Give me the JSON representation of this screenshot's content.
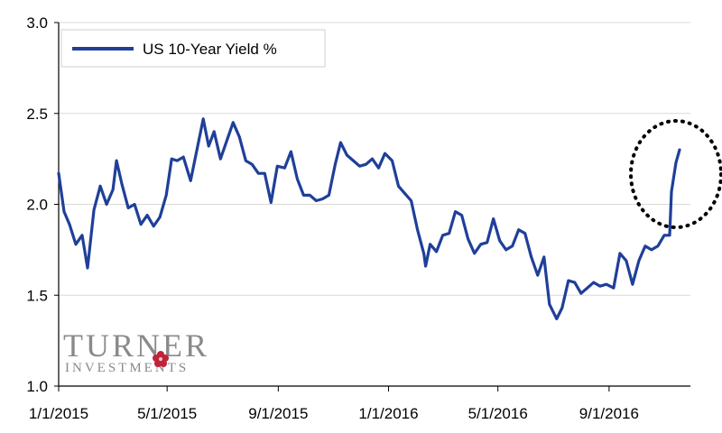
{
  "chart_data": {
    "type": "line",
    "title": "",
    "xlabel": "",
    "ylabel": "",
    "ylim": [
      1.0,
      3.0
    ],
    "yticks": [
      "1.0",
      "1.5",
      "2.0",
      "2.5",
      "3.0"
    ],
    "xlim": [
      "2015-01-01",
      "2016-11-30"
    ],
    "xticks": [
      {
        "date": "2015-01-01",
        "label": "1/1/2015"
      },
      {
        "date": "2015-05-01",
        "label": "5/1/2015"
      },
      {
        "date": "2015-09-01",
        "label": "9/1/2015"
      },
      {
        "date": "2016-01-01",
        "label": "1/1/2016"
      },
      {
        "date": "2016-05-01",
        "label": "5/1/2016"
      },
      {
        "date": "2016-09-01",
        "label": "9/1/2016"
      }
    ],
    "grid": "horizontal",
    "legend": "top-left",
    "line_color": "#1f3f99",
    "series": [
      {
        "name": "US 10-Year Yield %",
        "points": [
          [
            "2015-01-01",
            2.17
          ],
          [
            "2015-01-07",
            1.96
          ],
          [
            "2015-01-13",
            1.89
          ],
          [
            "2015-01-20",
            1.78
          ],
          [
            "2015-01-27",
            1.83
          ],
          [
            "2015-02-02",
            1.65
          ],
          [
            "2015-02-09",
            1.97
          ],
          [
            "2015-02-16",
            2.1
          ],
          [
            "2015-02-23",
            2.0
          ],
          [
            "2015-03-02",
            2.08
          ],
          [
            "2015-03-06",
            2.24
          ],
          [
            "2015-03-12",
            2.11
          ],
          [
            "2015-03-19",
            1.98
          ],
          [
            "2015-03-26",
            2.0
          ],
          [
            "2015-04-02",
            1.89
          ],
          [
            "2015-04-09",
            1.94
          ],
          [
            "2015-04-16",
            1.88
          ],
          [
            "2015-04-23",
            1.93
          ],
          [
            "2015-04-30",
            2.05
          ],
          [
            "2015-05-06",
            2.25
          ],
          [
            "2015-05-12",
            2.24
          ],
          [
            "2015-05-19",
            2.26
          ],
          [
            "2015-05-27",
            2.13
          ],
          [
            "2015-06-03",
            2.3
          ],
          [
            "2015-06-10",
            2.47
          ],
          [
            "2015-06-16",
            2.32
          ],
          [
            "2015-06-22",
            2.4
          ],
          [
            "2015-06-29",
            2.25
          ],
          [
            "2015-07-06",
            2.35
          ],
          [
            "2015-07-13",
            2.45
          ],
          [
            "2015-07-20",
            2.37
          ],
          [
            "2015-07-27",
            2.24
          ],
          [
            "2015-08-03",
            2.22
          ],
          [
            "2015-08-10",
            2.17
          ],
          [
            "2015-08-17",
            2.17
          ],
          [
            "2015-08-24",
            2.01
          ],
          [
            "2015-08-31",
            2.21
          ],
          [
            "2015-09-08",
            2.2
          ],
          [
            "2015-09-15",
            2.29
          ],
          [
            "2015-09-22",
            2.14
          ],
          [
            "2015-09-29",
            2.05
          ],
          [
            "2015-10-06",
            2.05
          ],
          [
            "2015-10-13",
            2.02
          ],
          [
            "2015-10-20",
            2.03
          ],
          [
            "2015-10-27",
            2.05
          ],
          [
            "2015-11-03",
            2.22
          ],
          [
            "2015-11-09",
            2.34
          ],
          [
            "2015-11-16",
            2.27
          ],
          [
            "2015-11-23",
            2.24
          ],
          [
            "2015-11-30",
            2.21
          ],
          [
            "2015-12-07",
            2.22
          ],
          [
            "2015-12-14",
            2.25
          ],
          [
            "2015-12-21",
            2.2
          ],
          [
            "2015-12-28",
            2.28
          ],
          [
            "2016-01-05",
            2.24
          ],
          [
            "2016-01-12",
            2.1
          ],
          [
            "2016-01-19",
            2.06
          ],
          [
            "2016-01-26",
            2.02
          ],
          [
            "2016-02-02",
            1.86
          ],
          [
            "2016-02-09",
            1.73
          ],
          [
            "2016-02-11",
            1.66
          ],
          [
            "2016-02-16",
            1.78
          ],
          [
            "2016-02-23",
            1.74
          ],
          [
            "2016-03-01",
            1.83
          ],
          [
            "2016-03-08",
            1.84
          ],
          [
            "2016-03-15",
            1.96
          ],
          [
            "2016-03-22",
            1.94
          ],
          [
            "2016-03-29",
            1.81
          ],
          [
            "2016-04-05",
            1.73
          ],
          [
            "2016-04-12",
            1.78
          ],
          [
            "2016-04-19",
            1.79
          ],
          [
            "2016-04-26",
            1.92
          ],
          [
            "2016-05-03",
            1.8
          ],
          [
            "2016-05-10",
            1.75
          ],
          [
            "2016-05-17",
            1.77
          ],
          [
            "2016-05-24",
            1.86
          ],
          [
            "2016-05-31",
            1.84
          ],
          [
            "2016-06-07",
            1.71
          ],
          [
            "2016-06-14",
            1.61
          ],
          [
            "2016-06-21",
            1.71
          ],
          [
            "2016-06-27",
            1.45
          ],
          [
            "2016-07-05",
            1.37
          ],
          [
            "2016-07-11",
            1.43
          ],
          [
            "2016-07-18",
            1.58
          ],
          [
            "2016-07-25",
            1.57
          ],
          [
            "2016-08-01",
            1.51
          ],
          [
            "2016-08-08",
            1.54
          ],
          [
            "2016-08-15",
            1.57
          ],
          [
            "2016-08-22",
            1.55
          ],
          [
            "2016-08-29",
            1.56
          ],
          [
            "2016-09-06",
            1.54
          ],
          [
            "2016-09-13",
            1.73
          ],
          [
            "2016-09-20",
            1.69
          ],
          [
            "2016-09-27",
            1.56
          ],
          [
            "2016-10-04",
            1.69
          ],
          [
            "2016-10-11",
            1.77
          ],
          [
            "2016-10-18",
            1.75
          ],
          [
            "2016-10-25",
            1.77
          ],
          [
            "2016-11-01",
            1.83
          ],
          [
            "2016-11-07",
            1.83
          ],
          [
            "2016-11-09",
            2.07
          ],
          [
            "2016-11-14",
            2.23
          ],
          [
            "2016-11-18",
            2.3
          ]
        ]
      }
    ],
    "annotation": "dotted circle highlighting the sharp rise in November 2016"
  },
  "logo": {
    "text_main": "TURNER",
    "text_sub": "INVESTMENTS"
  }
}
